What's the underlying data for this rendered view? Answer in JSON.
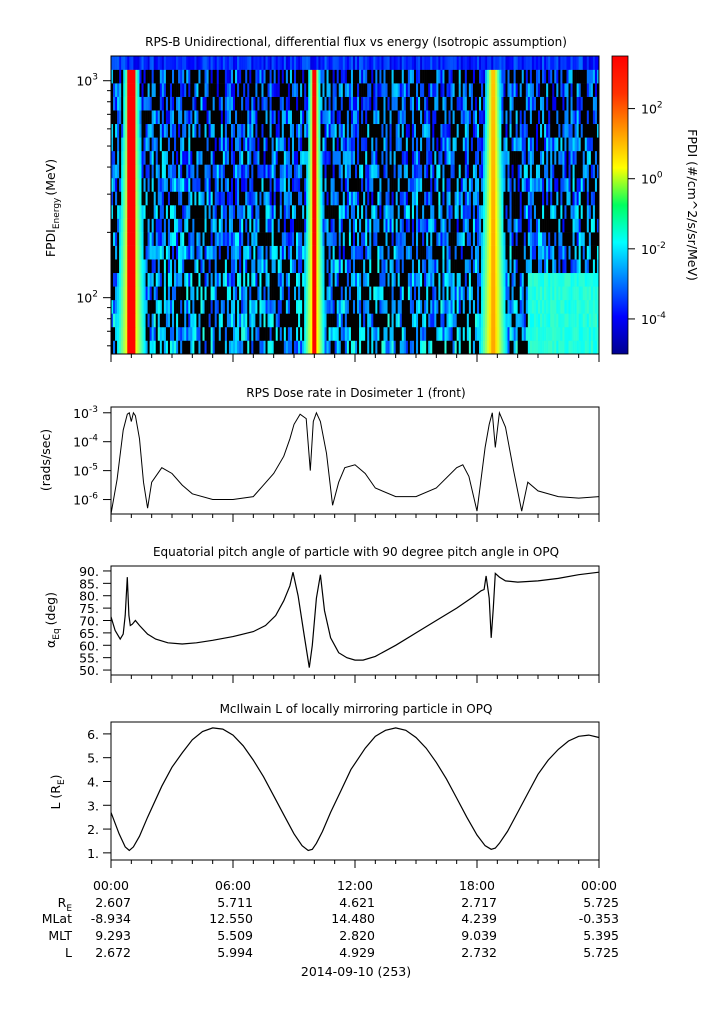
{
  "chart_data": [
    {
      "type": "heatmap",
      "title": "RPS-B  Unidirectional, differential flux vs energy (Isotropic assumption)",
      "ylabel_main": "FPDI",
      "ylabel_sub": "Energy",
      "ylabel_unit": "(MeV)",
      "y_scale": "log",
      "y_range_mev": [
        55,
        1300
      ],
      "y_tick_labels": [
        {
          "value": 100,
          "base": "10",
          "exp": "2"
        },
        {
          "value": 1000,
          "base": "10",
          "exp": "3"
        }
      ],
      "x_range_hours": [
        0,
        24
      ],
      "peak_flux_times_hours": [
        0.8,
        1.1,
        9.8,
        10.1,
        18.6,
        18.9
      ],
      "colorbar": {
        "label": "FPDI (#/cm^2/s/sr/MeV)",
        "scale": "log",
        "range_exp": [
          -5,
          3.5
        ],
        "tick_labels": [
          {
            "value_exp": -4,
            "base": "10",
            "exp": "-4"
          },
          {
            "value_exp": -2,
            "base": "10",
            "exp": "-2"
          },
          {
            "value_exp": 0,
            "base": "10",
            "exp": "0"
          },
          {
            "value_exp": 2,
            "base": "10",
            "exp": "2"
          }
        ]
      }
    },
    {
      "type": "line",
      "title": "RPS  Dose rate in Dosimeter 1 (front)",
      "ylabel": "(rads/sec)",
      "y_scale": "log",
      "ylim_exp": [
        -6.5,
        -2.8
      ],
      "y_tick_labels": [
        {
          "value_exp": -6,
          "base": "10",
          "exp": "-6"
        },
        {
          "value_exp": -5,
          "base": "10",
          "exp": "-5"
        },
        {
          "value_exp": -4,
          "base": "10",
          "exp": "-4"
        },
        {
          "value_exp": -3,
          "base": "10",
          "exp": "-3"
        }
      ],
      "x_hours": [
        0,
        0.3,
        0.6,
        0.8,
        0.9,
        1.0,
        1.1,
        1.2,
        1.4,
        1.6,
        1.8,
        2.0,
        2.5,
        3.0,
        3.5,
        4.0,
        5.0,
        6.0,
        7.0,
        7.5,
        8.0,
        8.5,
        8.8,
        9.0,
        9.3,
        9.6,
        9.8,
        9.95,
        10.1,
        10.3,
        10.6,
        10.9,
        11.2,
        11.5,
        12.0,
        12.5,
        13.0,
        14.0,
        15.0,
        16.0,
        17.0,
        17.3,
        17.6,
        18.0,
        18.4,
        18.6,
        18.75,
        18.9,
        19.1,
        19.4,
        19.8,
        20.2,
        20.5,
        21.0,
        22.0,
        23.0,
        24.0
      ],
      "y_exp": [
        -6.5,
        -5.3,
        -3.6,
        -3.05,
        -3.0,
        -3.3,
        -3.0,
        -3.1,
        -3.9,
        -5.4,
        -6.3,
        -5.4,
        -4.9,
        -5.1,
        -5.5,
        -5.8,
        -6.0,
        -6.0,
        -5.9,
        -5.5,
        -5.1,
        -4.5,
        -3.9,
        -3.4,
        -3.05,
        -3.2,
        -5.0,
        -3.3,
        -3.0,
        -3.3,
        -4.4,
        -6.2,
        -5.4,
        -4.9,
        -4.8,
        -5.1,
        -5.6,
        -5.9,
        -5.9,
        -5.6,
        -4.9,
        -4.8,
        -5.2,
        -6.4,
        -4.2,
        -3.4,
        -3.0,
        -4.2,
        -3.0,
        -3.5,
        -5.0,
        -6.4,
        -5.4,
        -5.7,
        -5.9,
        -5.95,
        -5.9
      ]
    },
    {
      "type": "line",
      "title": "Equatorial pitch angle of particle with 90 degree pitch angle in OPQ",
      "ylabel_alpha": "α",
      "ylabel_sub": "Eq",
      "ylabel_unit": "(deg)",
      "ylim": [
        48,
        92
      ],
      "y_ticks": [
        50.0,
        55.0,
        60.0,
        65.0,
        70.0,
        75.0,
        80.0,
        85.0,
        90.0
      ],
      "y_tick_labels": [
        "50.",
        "55.",
        "60.",
        "65.",
        "70.",
        "75.",
        "80.",
        "85.",
        "90."
      ],
      "x_hours": [
        0,
        0.2,
        0.45,
        0.6,
        0.7,
        0.8,
        0.88,
        0.95,
        1.05,
        1.2,
        1.4,
        1.8,
        2.2,
        2.8,
        3.5,
        4.2,
        5.0,
        6.0,
        7.0,
        7.6,
        8.1,
        8.5,
        8.8,
        8.95,
        9.2,
        9.5,
        9.75,
        9.9,
        10.1,
        10.3,
        10.5,
        10.8,
        11.2,
        11.6,
        12.0,
        12.4,
        13.0,
        14.0,
        15.0,
        16.0,
        17.0,
        17.8,
        18.2,
        18.35,
        18.45,
        18.6,
        18.7,
        18.8,
        18.9,
        19.1,
        19.4,
        20.0,
        21.0,
        22.0,
        23.0,
        24.0
      ],
      "y": [
        71.5,
        66.0,
        62.5,
        64.5,
        72.0,
        87.5,
        72.0,
        68.0,
        68.5,
        70.0,
        68.0,
        64.5,
        62.5,
        61.0,
        60.5,
        61.0,
        62.0,
        63.5,
        65.5,
        68.0,
        72.0,
        78.0,
        84.0,
        89.5,
        80.0,
        64.0,
        51.0,
        60.0,
        79.0,
        88.5,
        74.0,
        63.0,
        57.0,
        55.0,
        54.0,
        54.0,
        55.5,
        60.0,
        65.0,
        70.0,
        75.0,
        79.5,
        82.0,
        82.5,
        88.0,
        79.0,
        63.0,
        75.0,
        89.0,
        87.5,
        86.0,
        85.5,
        86.0,
        87.0,
        88.5,
        89.5
      ]
    },
    {
      "type": "line",
      "title": "McIlwain L of locally mirroring particle in OPQ",
      "ylabel_l": "L (R",
      "ylabel_sub": "E",
      "ylabel_close": ")",
      "ylim": [
        0.7,
        6.5
      ],
      "y_ticks": [
        1,
        2,
        3,
        4,
        5,
        6
      ],
      "y_tick_labels": [
        "1.",
        "2.",
        "3.",
        "4.",
        "5.",
        "6."
      ],
      "x_hours": [
        0,
        0.4,
        0.7,
        0.9,
        1.1,
        1.4,
        1.8,
        2.5,
        3.0,
        3.5,
        4.0,
        4.5,
        5.0,
        5.5,
        6.0,
        6.5,
        7.0,
        7.5,
        8.0,
        8.5,
        9.0,
        9.4,
        9.7,
        9.9,
        10.1,
        10.4,
        10.8,
        11.3,
        11.8,
        12.5,
        13.0,
        13.5,
        14.0,
        14.5,
        15.0,
        15.5,
        16.0,
        16.5,
        17.0,
        17.5,
        18.0,
        18.4,
        18.7,
        18.9,
        19.1,
        19.5,
        20.0,
        20.5,
        21.0,
        21.5,
        22.0,
        22.5,
        23.0,
        23.5,
        24.0
      ],
      "y": [
        2.7,
        1.8,
        1.25,
        1.1,
        1.25,
        1.7,
        2.5,
        3.8,
        4.6,
        5.2,
        5.75,
        6.1,
        6.25,
        6.2,
        5.95,
        5.5,
        4.9,
        4.2,
        3.4,
        2.6,
        1.8,
        1.3,
        1.1,
        1.15,
        1.4,
        1.9,
        2.7,
        3.6,
        4.5,
        5.4,
        5.9,
        6.15,
        6.25,
        6.15,
        5.85,
        5.4,
        4.8,
        4.1,
        3.3,
        2.5,
        1.75,
        1.3,
        1.15,
        1.2,
        1.4,
        1.9,
        2.7,
        3.5,
        4.3,
        4.9,
        5.35,
        5.7,
        5.9,
        5.95,
        5.85
      ]
    }
  ],
  "x_axis": {
    "range_hours": [
      0,
      24
    ],
    "tick_hours": [
      0,
      6,
      12,
      18,
      24
    ],
    "tick_labels": [
      "00:00",
      "06:00",
      "12:00",
      "18:00",
      "00:00"
    ],
    "date_label": "2014-09-10 (253)"
  },
  "ephemeris": {
    "rows": [
      {
        "label": "R",
        "label_sub": "E",
        "values": [
          "2.607",
          "5.711",
          "4.621",
          "2.717",
          "5.725"
        ]
      },
      {
        "label": "MLat",
        "label_sub": "",
        "values": [
          "-8.934",
          "12.550",
          "14.480",
          "4.239",
          "-0.353"
        ]
      },
      {
        "label": "MLT",
        "label_sub": "",
        "values": [
          "9.293",
          "5.509",
          "2.820",
          "9.039",
          "5.395"
        ]
      },
      {
        "label": "L",
        "label_sub": "",
        "values": [
          "2.672",
          "5.994",
          "4.929",
          "2.732",
          "5.725"
        ]
      }
    ]
  },
  "colors": {
    "line": "#000000",
    "axis": "#000000",
    "background": "#ffffff"
  }
}
